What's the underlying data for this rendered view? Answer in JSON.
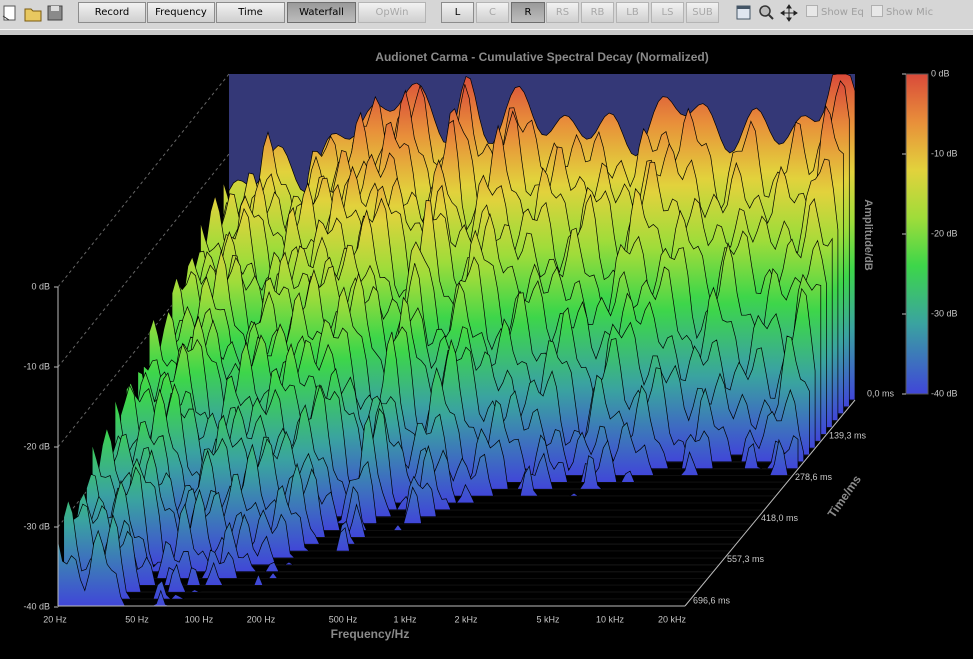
{
  "toolbar": {
    "buttons": [
      "Record",
      "Frequency",
      "Time",
      "Waterfall",
      "OpWin"
    ],
    "channels": [
      "L",
      "C",
      "R",
      "RS",
      "RB",
      "LB",
      "LS",
      "SUB"
    ],
    "checkboxes": [
      "Show Eq",
      "Show Mic"
    ]
  },
  "chart": {
    "title": "Audionet Carma - Cumulative Spectral Decay (Normalized)",
    "x_axis_label": "Frequency/Hz",
    "x_ticks": [
      "20 Hz",
      "50 Hz",
      "100 Hz",
      "200 Hz",
      "500 Hz",
      "1 kHz",
      "2 kHz",
      "5 kHz",
      "10 kHz",
      "20 kHz"
    ],
    "z_ticks": [
      "0 dB",
      "-10 dB",
      "-20 dB",
      "-30 dB",
      "-40 dB"
    ],
    "time_axis_label": "Time/ms",
    "time_ticks": [
      "0,0 ms",
      "139,3 ms",
      "278,6 ms",
      "418,0 ms",
      "557,3 ms",
      "696,6 ms"
    ],
    "colorbar_label": "Amplitude/dB",
    "colorbar_ticks": [
      "0 dB",
      "-10 dB",
      "-20 dB",
      "-30 dB",
      "-40 dB"
    ]
  }
}
